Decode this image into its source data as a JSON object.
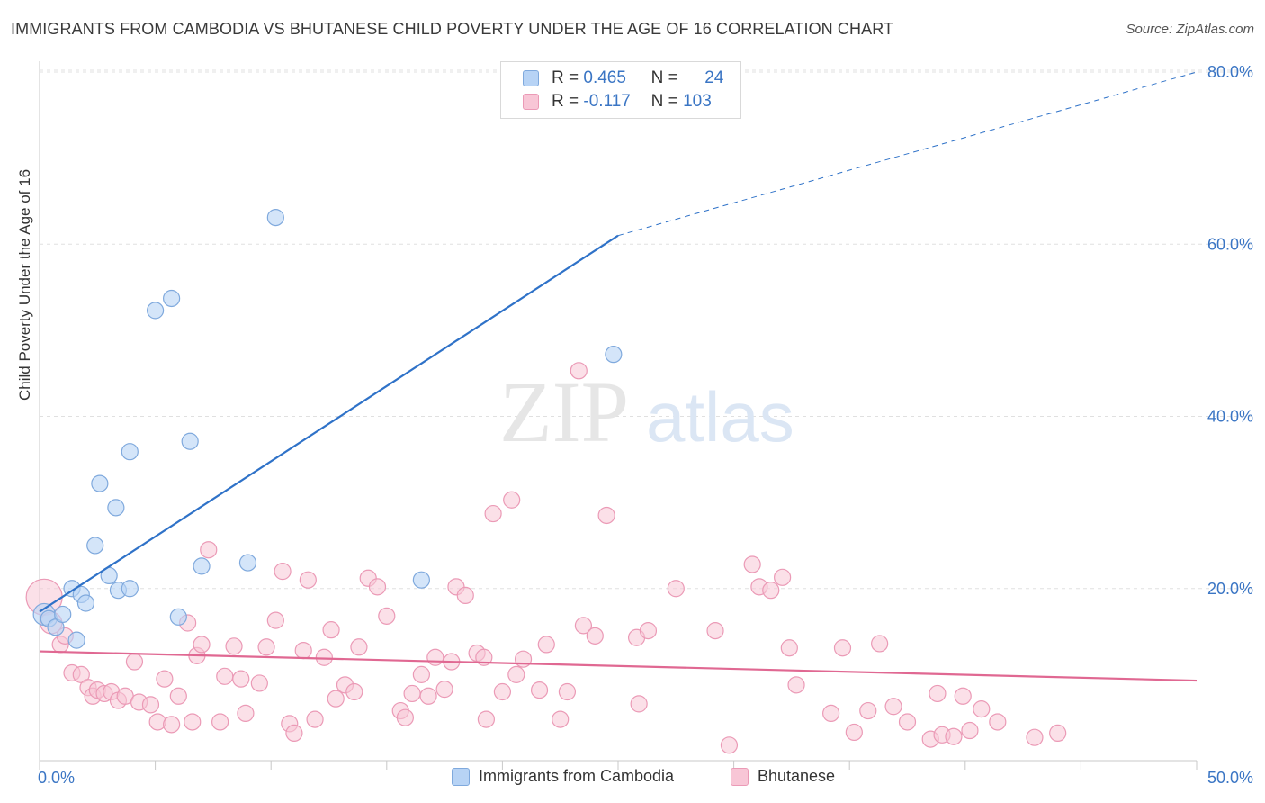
{
  "title": "IMMIGRANTS FROM CAMBODIA VS BHUTANESE CHILD POVERTY UNDER THE AGE OF 16 CORRELATION CHART",
  "source": "Source: ZipAtlas.com",
  "watermark": {
    "zip": "ZIP",
    "atlas": "atlas"
  },
  "legend": {
    "rows": [
      {
        "r_label": "R =",
        "r_value": "0.465",
        "n_label": "N =",
        "n_value": "24"
      },
      {
        "r_label": "R =",
        "r_value": "-0.117",
        "n_label": "N =",
        "n_value": "103"
      }
    ]
  },
  "colors": {
    "cambodia_fill": "#b7d3f5",
    "cambodia_stroke": "#7fa9dd",
    "cambodia_line": "#2f72c8",
    "bhutanese_fill": "#f8c6d6",
    "bhutanese_stroke": "#eb9ab6",
    "bhutanese_line": "#e06892",
    "grid": "#e0e0e0",
    "tick_text": "#3a75c4"
  },
  "chart_data": {
    "type": "scatter",
    "title": "IMMIGRANTS FROM CAMBODIA VS BHUTANESE CHILD POVERTY UNDER THE AGE OF 16 CORRELATION CHART",
    "xlabel": "",
    "ylabel": "Child Poverty Under the Age of 16",
    "xlim": [
      0,
      50
    ],
    "ylim": [
      0,
      80
    ],
    "x_tick_labels": [
      "0.0%",
      "50.0%"
    ],
    "y_ticks": [
      20,
      40,
      60,
      80
    ],
    "y_tick_labels": [
      "20.0%",
      "40.0%",
      "60.0%",
      "80.0%"
    ],
    "grid": true,
    "legend_position": "bottom",
    "series": [
      {
        "name": "Immigrants from Cambodia",
        "r": 0.465,
        "n": 24,
        "trend": {
          "x0": 0,
          "y0": 17.3,
          "x1": 25,
          "y1": 61.0,
          "x_end": 50,
          "y_end": 80.0
        },
        "points": [
          [
            0.2,
            17.0
          ],
          [
            0.4,
            16.5
          ],
          [
            0.7,
            15.5
          ],
          [
            1.0,
            17.0
          ],
          [
            1.4,
            20.0
          ],
          [
            1.6,
            14.0
          ],
          [
            1.8,
            19.3
          ],
          [
            2.0,
            18.3
          ],
          [
            2.4,
            25.0
          ],
          [
            2.6,
            32.2
          ],
          [
            3.0,
            21.5
          ],
          [
            3.3,
            29.4
          ],
          [
            3.4,
            19.8
          ],
          [
            3.9,
            20.0
          ],
          [
            3.9,
            35.9
          ],
          [
            5.0,
            52.3
          ],
          [
            5.7,
            53.7
          ],
          [
            6.0,
            16.7
          ],
          [
            6.5,
            37.1
          ],
          [
            7.0,
            22.6
          ],
          [
            9.0,
            23.0
          ],
          [
            10.2,
            63.1
          ],
          [
            16.5,
            21.0
          ],
          [
            24.8,
            47.2
          ]
        ]
      },
      {
        "name": "Bhutanese",
        "r": -0.117,
        "n": 103,
        "trend": {
          "x0": 0,
          "y0": 12.7,
          "x1": 50,
          "y1": 9.3
        },
        "points": [
          [
            0.2,
            19.0
          ],
          [
            0.5,
            16.0
          ],
          [
            0.9,
            13.5
          ],
          [
            1.1,
            14.5
          ],
          [
            1.4,
            10.2
          ],
          [
            1.8,
            10.0
          ],
          [
            2.1,
            8.5
          ],
          [
            2.3,
            7.5
          ],
          [
            2.5,
            8.2
          ],
          [
            2.8,
            7.8
          ],
          [
            3.1,
            8.0
          ],
          [
            3.4,
            7.0
          ],
          [
            3.7,
            7.5
          ],
          [
            4.1,
            11.5
          ],
          [
            4.3,
            6.8
          ],
          [
            4.8,
            6.5
          ],
          [
            5.1,
            4.5
          ],
          [
            5.4,
            9.5
          ],
          [
            5.7,
            4.2
          ],
          [
            6.0,
            7.5
          ],
          [
            6.4,
            16.0
          ],
          [
            6.6,
            4.5
          ],
          [
            6.8,
            12.2
          ],
          [
            7.0,
            13.5
          ],
          [
            7.3,
            24.5
          ],
          [
            7.8,
            4.5
          ],
          [
            8.0,
            9.8
          ],
          [
            8.4,
            13.3
          ],
          [
            8.7,
            9.5
          ],
          [
            8.9,
            5.5
          ],
          [
            9.5,
            9.0
          ],
          [
            9.8,
            13.2
          ],
          [
            10.2,
            16.3
          ],
          [
            10.5,
            22.0
          ],
          [
            10.8,
            4.3
          ],
          [
            11.0,
            3.2
          ],
          [
            11.4,
            12.8
          ],
          [
            11.6,
            21.0
          ],
          [
            11.9,
            4.8
          ],
          [
            12.3,
            12.0
          ],
          [
            12.6,
            15.2
          ],
          [
            12.8,
            7.2
          ],
          [
            13.2,
            8.8
          ],
          [
            13.6,
            8.0
          ],
          [
            13.8,
            13.2
          ],
          [
            14.2,
            21.2
          ],
          [
            14.6,
            20.2
          ],
          [
            15.0,
            16.8
          ],
          [
            15.6,
            5.8
          ],
          [
            15.8,
            5.0
          ],
          [
            16.1,
            7.8
          ],
          [
            16.5,
            10.0
          ],
          [
            16.8,
            7.5
          ],
          [
            17.1,
            12.0
          ],
          [
            17.5,
            8.3
          ],
          [
            17.8,
            11.5
          ],
          [
            18.0,
            20.2
          ],
          [
            18.4,
            19.2
          ],
          [
            18.9,
            12.5
          ],
          [
            19.2,
            12.0
          ],
          [
            19.3,
            4.8
          ],
          [
            19.6,
            28.7
          ],
          [
            20.0,
            8.0
          ],
          [
            20.4,
            30.3
          ],
          [
            20.6,
            10.0
          ],
          [
            20.9,
            11.8
          ],
          [
            21.6,
            8.2
          ],
          [
            21.9,
            13.5
          ],
          [
            22.5,
            4.8
          ],
          [
            22.8,
            8.0
          ],
          [
            23.3,
            45.3
          ],
          [
            23.5,
            15.7
          ],
          [
            24.0,
            14.5
          ],
          [
            24.5,
            28.5
          ],
          [
            25.8,
            14.3
          ],
          [
            25.9,
            6.6
          ],
          [
            26.3,
            15.1
          ],
          [
            27.5,
            20.0
          ],
          [
            29.2,
            15.1
          ],
          [
            29.8,
            1.8
          ],
          [
            30.8,
            22.8
          ],
          [
            31.1,
            20.2
          ],
          [
            31.6,
            19.8
          ],
          [
            32.1,
            21.3
          ],
          [
            32.4,
            13.1
          ],
          [
            32.7,
            8.8
          ],
          [
            34.2,
            5.5
          ],
          [
            34.7,
            13.1
          ],
          [
            35.2,
            3.3
          ],
          [
            35.8,
            5.8
          ],
          [
            36.3,
            13.6
          ],
          [
            36.9,
            6.3
          ],
          [
            37.5,
            4.5
          ],
          [
            38.5,
            2.5
          ],
          [
            38.8,
            7.8
          ],
          [
            39.0,
            3.0
          ],
          [
            39.5,
            2.8
          ],
          [
            39.9,
            7.5
          ],
          [
            40.2,
            3.5
          ],
          [
            40.7,
            6.0
          ],
          [
            41.4,
            4.5
          ],
          [
            43.0,
            2.7
          ],
          [
            44.0,
            3.2
          ]
        ]
      }
    ]
  },
  "bottom_legend": {
    "cambodia": "Immigrants from Cambodia",
    "bhutanese": "Bhutanese"
  }
}
